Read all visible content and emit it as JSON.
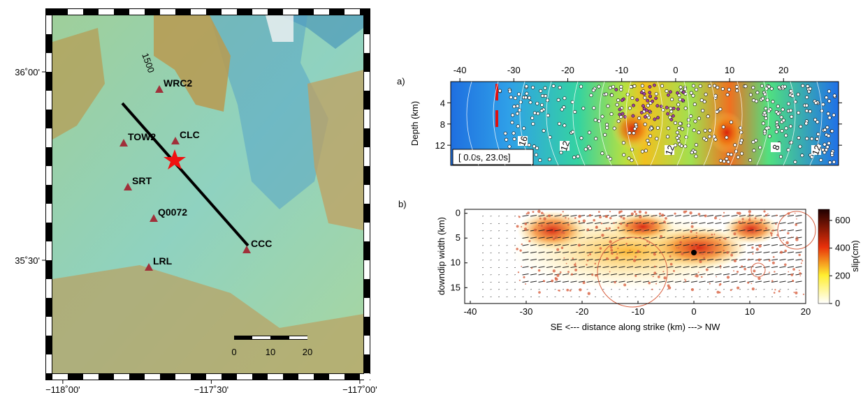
{
  "map": {
    "lon_lim": [
      -118.035,
      -116.988
    ],
    "lat_lim": [
      35.2,
      36.15
    ],
    "lon_ticks": [
      {
        "value": -118,
        "label": "−118˚00'"
      },
      {
        "value": -117.5,
        "label": "−117˚30'"
      },
      {
        "value": -117,
        "label": "−117˚00'"
      }
    ],
    "lat_ticks": [
      {
        "value": 36,
        "label": "36˚00'"
      },
      {
        "value": 35.5,
        "label": "35˚30'"
      }
    ],
    "stations": [
      "WRC2",
      "TOW2",
      "CLC",
      "SRT",
      "Q0072",
      "CCC",
      "LRL"
    ],
    "contour_label": "1500",
    "scale_bar_ticks": [
      0,
      10,
      20
    ]
  },
  "panel_a": {
    "label": "a)",
    "y_label": "Depth (km)",
    "xlim": [
      -41.7,
      30.2
    ],
    "ylim": [
      0,
      15.8
    ],
    "xticks": [
      -40,
      -30,
      -20,
      -10,
      0,
      10,
      20
    ],
    "yticks": [
      4,
      8,
      12
    ],
    "time_window": "[ 0.0s, 23.0s]",
    "contour_labels": [
      "16",
      "12",
      "12",
      "8",
      "12"
    ]
  },
  "panel_b": {
    "label": "b)",
    "x_label": "SE <--- distance along strike (km) ---> NW",
    "y_label": "downdip width (km)",
    "xlim": [
      -41,
      20
    ],
    "ylim": [
      -0.8,
      18.2
    ],
    "xticks": [
      -40,
      -30,
      -20,
      -10,
      0,
      10,
      20
    ],
    "yticks": [
      0,
      5,
      10,
      15
    ],
    "colorbar": {
      "label": "slip(cm)",
      "lim": [
        0,
        680
      ],
      "ticks": [
        0,
        200,
        400,
        600
      ]
    }
  }
}
